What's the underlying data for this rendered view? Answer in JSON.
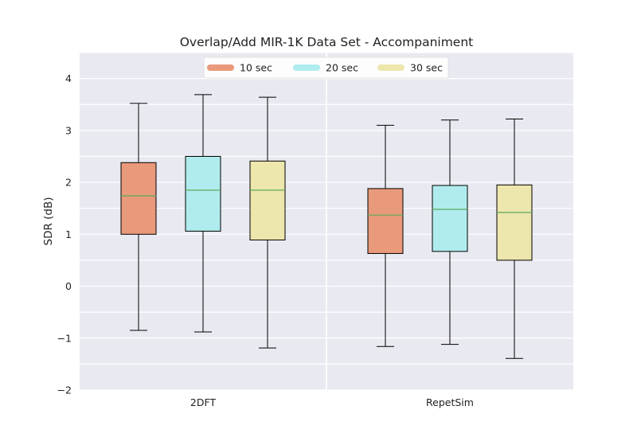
{
  "chart_data": {
    "type": "box",
    "title": "Overlap/Add MIR-1K Data Set - Accompaniment",
    "xlabel": "",
    "ylabel": "SDR (dB)",
    "ylim": [
      -2,
      4.5
    ],
    "yticks": [
      -2,
      -1,
      0,
      1,
      2,
      3,
      4
    ],
    "ytick_labels": [
      "−2",
      "−1",
      "0",
      "1",
      "2",
      "3",
      "4"
    ],
    "grid": true,
    "legend_position": "top-center",
    "categories": [
      "2DFT",
      "RepetSim"
    ],
    "series": [
      {
        "name": "10 sec",
        "color": "#e99a7b",
        "boxes": [
          {
            "whislo": -0.85,
            "q1": 1.0,
            "median": 1.74,
            "q3": 2.38,
            "whishi": 3.52
          },
          {
            "whislo": -1.16,
            "q1": 0.63,
            "median": 1.37,
            "q3": 1.88,
            "whishi": 3.1
          }
        ]
      },
      {
        "name": "20 sec",
        "color": "#b0ecee",
        "boxes": [
          {
            "whislo": -0.88,
            "q1": 1.06,
            "median": 1.85,
            "q3": 2.5,
            "whishi": 3.69
          },
          {
            "whislo": -1.12,
            "q1": 0.67,
            "median": 1.48,
            "q3": 1.94,
            "whishi": 3.2
          }
        ]
      },
      {
        "name": "30 sec",
        "color": "#ede6ad",
        "boxes": [
          {
            "whislo": -1.19,
            "q1": 0.89,
            "median": 1.85,
            "q3": 2.41,
            "whishi": 3.64
          },
          {
            "whislo": -1.39,
            "q1": 0.5,
            "median": 1.42,
            "q3": 1.95,
            "whishi": 3.22
          }
        ]
      }
    ],
    "colors": {
      "median": "#5aaa5a",
      "plot_bg": "#e9eaf1",
      "grid": "#ffffff",
      "outline": "#000000"
    }
  }
}
